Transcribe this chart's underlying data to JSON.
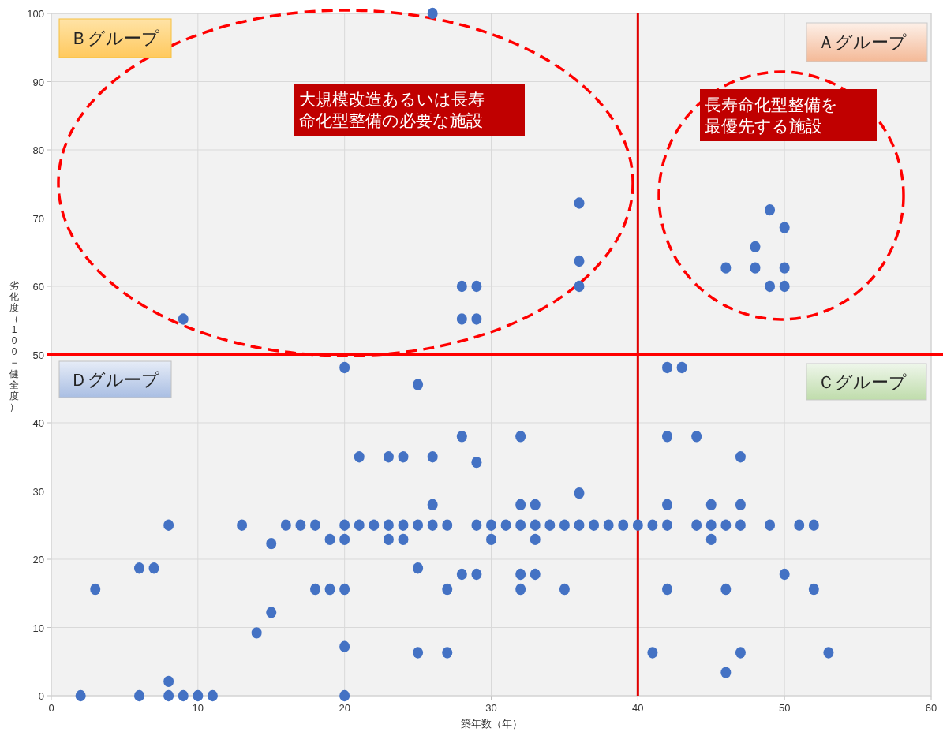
{
  "chart_data": {
    "type": "scatter",
    "xlabel": "築年数（年）",
    "ylabel": "劣化度（100−健全度）",
    "xlim": [
      0,
      60
    ],
    "xticks": [
      0,
      10,
      20,
      30,
      40,
      50,
      60
    ],
    "ylim": [
      0,
      100
    ],
    "yticks": [
      0,
      10,
      20,
      30,
      40,
      50,
      60,
      70,
      80,
      90,
      100
    ],
    "grid": true,
    "marker": "circle",
    "series": [
      {
        "color": "#4472c4",
        "x": [
          26,
          9,
          28,
          29,
          28,
          29,
          36,
          36,
          36,
          46,
          48,
          48,
          49,
          49,
          50,
          50,
          50,
          20,
          25,
          42,
          43,
          21,
          23,
          24,
          26,
          29,
          28,
          32,
          42,
          44,
          47,
          26,
          32,
          33,
          36,
          42,
          45,
          47,
          8,
          13,
          16,
          17,
          18,
          20,
          21,
          22,
          23,
          24,
          25,
          26,
          27,
          29,
          30,
          31,
          32,
          33,
          34,
          35,
          36,
          37,
          38,
          39,
          40,
          41,
          42,
          44,
          45,
          46,
          47,
          49,
          51,
          52,
          19,
          20,
          23,
          24,
          30,
          33,
          45,
          15,
          6,
          7,
          25,
          28,
          29,
          32,
          33,
          50,
          3,
          18,
          19,
          20,
          27,
          32,
          35,
          42,
          46,
          52,
          15,
          14,
          20,
          25,
          27,
          41,
          47,
          53,
          46,
          8,
          2,
          6,
          8,
          9,
          10,
          11,
          20
        ],
        "values": [
          100,
          55.2,
          60,
          60,
          55.2,
          55.2,
          72.2,
          63.7,
          60,
          62.7,
          65.8,
          62.7,
          71.2,
          60,
          68.6,
          62.7,
          60,
          48.1,
          45.6,
          48.1,
          48.1,
          35,
          35,
          35,
          35,
          34.2,
          38,
          38,
          38,
          38,
          35,
          28,
          28,
          28,
          29.7,
          28,
          28,
          28,
          25,
          25,
          25,
          25,
          25,
          25,
          25,
          25,
          25,
          25,
          25,
          25,
          25,
          25,
          25,
          25,
          25,
          25,
          25,
          25,
          25,
          25,
          25,
          25,
          25,
          25,
          25,
          25,
          25,
          25,
          25,
          25,
          25,
          25,
          22.9,
          22.9,
          22.9,
          22.9,
          22.9,
          22.9,
          22.9,
          22.3,
          18.7,
          18.7,
          18.7,
          17.8,
          17.8,
          17.8,
          17.8,
          17.8,
          15.6,
          15.6,
          15.6,
          15.6,
          15.6,
          15.6,
          15.6,
          15.6,
          15.6,
          15.6,
          12.2,
          9.2,
          7.2,
          6.3,
          6.3,
          6.3,
          6.3,
          6.3,
          3.4,
          2.1,
          0,
          0,
          0,
          0,
          0,
          0,
          0
        ]
      }
    ],
    "ref_lines": [
      {
        "axis": "x",
        "value": 40,
        "color": "#e00000"
      },
      {
        "axis": "y",
        "value": 50,
        "color": "#ff0000"
      }
    ],
    "annotations": [
      "Ｂグループ",
      "Ａグループ",
      "Ｄグループ",
      "Ｃグループ",
      "大規模改造あるいは長寿命化型整備の必要な施設",
      "長寿命化型整備を最優先する施設"
    ]
  }
}
